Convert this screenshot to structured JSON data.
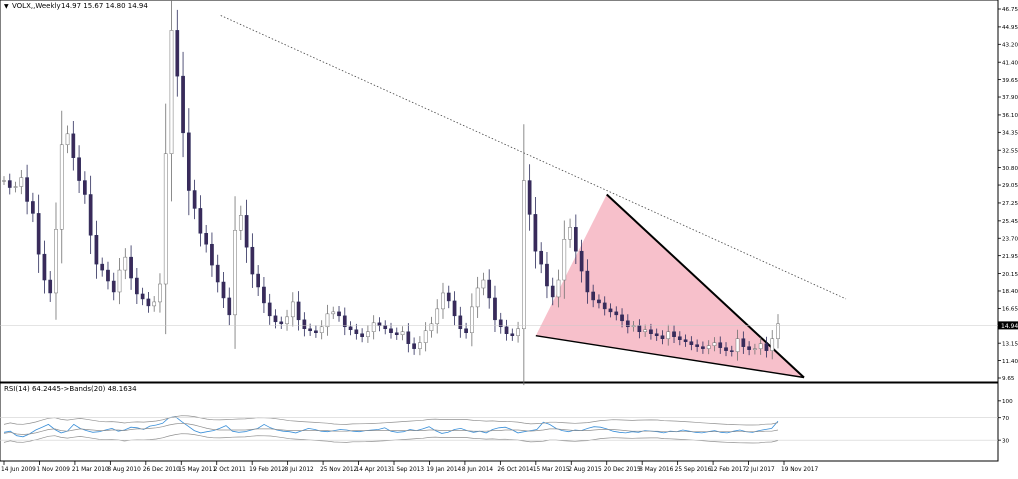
{
  "header": {
    "symbol": "VOLX,,Weekly",
    "ohlc": "14.97 15.67 14.80 14.94",
    "rsi_label": "RSI(14) 64.2445",
    "bands_label": "->Bands(20) 48.1634"
  },
  "chart_data": [
    {
      "type": "candlestick",
      "title": "VOLX,,Weekly",
      "ylim": [
        9.65,
        46.75
      ],
      "y_ticks": [
        "46.75",
        "44.95",
        "43.20",
        "41.40",
        "39.65",
        "37.90",
        "36.10",
        "34.35",
        "32.55",
        "30.80",
        "29.05",
        "27.25",
        "25.45",
        "23.70",
        "21.95",
        "20.15",
        "18.40",
        "16.65",
        "14.94",
        "13.15",
        "11.40",
        "9.65"
      ],
      "last_price": "14.94",
      "x_ticks": [
        "14 Jun 2009",
        "1 Nov 2009",
        "21 Mar 2010",
        "8 Aug 2010",
        "26 Dec 2010",
        "15 May 2011",
        "2 Oct 2011",
        "19 Feb 2012",
        "8 Jul 2012",
        "25 Nov 2012",
        "14 Apr 2013",
        "1 Sep 2013",
        "19 Jan 2014",
        "8 Jun 2014",
        "26 Oct 2014",
        "15 Mar 2015",
        "2 Aug 2015",
        "20 Dec 2015",
        "8 May 2016",
        "25 Sep 2016",
        "12 Feb 2017",
        "2 Jul 2017",
        "19 Nov 2017"
      ],
      "series_close_approx": [
        29.5,
        28.8,
        28.9,
        29.8,
        27.4,
        26.2,
        22.1,
        19.5,
        18.2,
        24.6,
        33.1,
        34.2,
        31.8,
        29.5,
        28.1,
        24.0,
        21.1,
        20.5,
        19.4,
        18.3,
        20.5,
        21.8,
        19.7,
        18.1,
        17.6,
        16.9,
        17.3,
        19.1,
        32.2,
        44.6,
        40.0,
        34.3,
        28.5,
        26.7,
        24.2,
        23.1,
        21.0,
        19.3,
        17.7,
        16.0,
        24.5,
        26.0,
        22.8,
        20.1,
        18.8,
        17.2,
        15.9,
        15.3,
        15.1,
        15.8,
        17.3,
        15.5,
        14.6,
        14.4,
        14.2,
        14.8,
        16.1,
        16.3,
        15.9,
        14.8,
        14.5,
        14.1,
        13.8,
        14.3,
        15.2,
        14.9,
        14.6,
        14.2,
        14.0,
        14.3,
        13.1,
        12.6,
        13.2,
        14.4,
        15.1,
        16.6,
        18.2,
        17.4,
        15.9,
        14.6,
        14.2,
        16.8,
        18.7,
        19.5,
        17.7,
        15.5,
        14.8,
        14.1,
        13.9,
        14.6,
        29.5,
        26.1,
        22.4,
        21.1,
        18.9,
        17.8,
        19.5,
        23.6,
        24.8,
        22.4,
        20.4,
        18.3,
        17.5,
        17.2,
        16.6,
        16.3,
        16.0,
        15.4,
        14.8,
        14.9,
        14.3,
        14.5,
        14.1,
        13.9,
        13.6,
        14.3,
        13.8,
        13.5,
        13.3,
        13.0,
        12.8,
        12.6,
        12.9,
        13.2,
        12.7,
        12.4,
        12.3,
        13.6,
        12.8,
        12.5,
        12.6,
        13.1,
        12.4,
        13.6,
        15.1
      ],
      "annotations": [
        {
          "kind": "dotted-trendline",
          "from": {
            "date": "2 Oct 2011",
            "value": 46.1
          },
          "to": {
            "date": "19 Nov 2017",
            "value": 17.6
          }
        },
        {
          "kind": "falling-wedge",
          "points": [
            {
              "date": "15 Mar 2015",
              "value": 13.9
            },
            {
              "date": "20 Dec 2015",
              "value": 28.1
            },
            {
              "date": "19 Nov 2017",
              "value": 9.7
            }
          ]
        }
      ]
    },
    {
      "type": "line",
      "title": "RSI(14) 64.2445",
      "ylim": [
        0,
        100
      ],
      "y_ticks": [
        "100",
        "70",
        "30",
        "0"
      ],
      "series": [
        {
          "name": "RSI(14)",
          "color": "#3a8fd8",
          "values": [
            44,
            46,
            38,
            36,
            41,
            48,
            53,
            58,
            49,
            43,
            46,
            58,
            51,
            47,
            44,
            45,
            48,
            51,
            46,
            48,
            53,
            52,
            49,
            55,
            57,
            60,
            70,
            72,
            63,
            55,
            47,
            43,
            45,
            47,
            51,
            56,
            46,
            44,
            45,
            48,
            51,
            58,
            52,
            48,
            46,
            45,
            43,
            47,
            51,
            49,
            46,
            45,
            47,
            49,
            48,
            46,
            45,
            47,
            48,
            49,
            52,
            46,
            44,
            45,
            49,
            47,
            50,
            54,
            47,
            42,
            44,
            49,
            51,
            47,
            44,
            46,
            43,
            49,
            52,
            53,
            49,
            43,
            45,
            47,
            49,
            62,
            58,
            51,
            47,
            45,
            48,
            47,
            51,
            54,
            53,
            50,
            46,
            44,
            43,
            45,
            44,
            47,
            46,
            45,
            43,
            46,
            45,
            48,
            46,
            44,
            43,
            45,
            47,
            44,
            43,
            46,
            48,
            45,
            44,
            47,
            49,
            51,
            64
          ]
        },
        {
          "name": "Bands(20)",
          "color": "#909090",
          "values": [
            42,
            44,
            41,
            40,
            41,
            43,
            46,
            49,
            50,
            47,
            46,
            48,
            50,
            49,
            48,
            47,
            47,
            48,
            48,
            47,
            49,
            50,
            50,
            51,
            52,
            54,
            57,
            59,
            60,
            59,
            57,
            54,
            51,
            49,
            48,
            48,
            48,
            48,
            48,
            49,
            50,
            50,
            50,
            49,
            48,
            47,
            47,
            47,
            47,
            47,
            47,
            47,
            46,
            46,
            46,
            47,
            47,
            47,
            47,
            47,
            47,
            47,
            47,
            47,
            47,
            47,
            47,
            48,
            48,
            47,
            47,
            47,
            47,
            47,
            46,
            46,
            46,
            47,
            47,
            48,
            48,
            48,
            47,
            46,
            47,
            48,
            50,
            50,
            49,
            48,
            47,
            47,
            47,
            48,
            49,
            49,
            49,
            48,
            47,
            46,
            46,
            46,
            46,
            46,
            45,
            45,
            45,
            45,
            45,
            45,
            45,
            45,
            45,
            45,
            45,
            45,
            45,
            45,
            45,
            45,
            46,
            46,
            48
          ]
        }
      ]
    }
  ]
}
